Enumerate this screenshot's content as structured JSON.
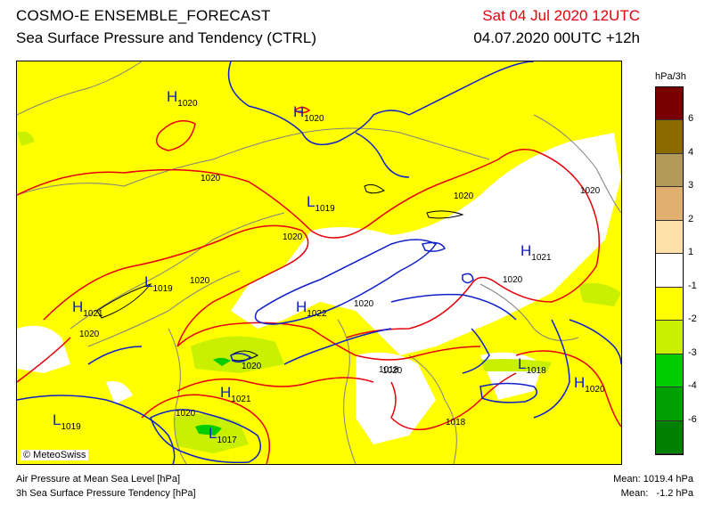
{
  "header": {
    "title": "COSMO-E ENSEMBLE_FORECAST",
    "subtitle": "Sea Surface Pressure and Tendency (CTRL)",
    "valid_time": "Sat 04 Jul 2020 12UTC",
    "run_time": "04.07.2020 00UTC +12h"
  },
  "legend": {
    "unit": "hPa/3h",
    "entries": [
      {
        "label": "6",
        "color": "#7a0000"
      },
      {
        "label": "4",
        "color": "#8c6a00"
      },
      {
        "label": "3",
        "color": "#b49a5a"
      },
      {
        "label": "2",
        "color": "#e0b070"
      },
      {
        "label": "1",
        "color": "#ffe0a8"
      },
      {
        "label": "-1",
        "color": "#ffffff"
      },
      {
        "label": "-2",
        "color": "#ffff00"
      },
      {
        "label": "-3",
        "color": "#c8f000"
      },
      {
        "label": "-4",
        "color": "#00cc00"
      },
      {
        "label": "-6",
        "color": "#00a000"
      },
      {
        "label": "",
        "color": "#008000"
      }
    ]
  },
  "map": {
    "copyright": "© MeteoSwiss",
    "pressure_centers": [
      {
        "type": "H",
        "value": "1020"
      },
      {
        "type": "H",
        "value": "1020"
      },
      {
        "type": "L",
        "value": "1019"
      },
      {
        "type": "H",
        "value": "1021"
      },
      {
        "type": "L",
        "value": "1019"
      },
      {
        "type": "H",
        "value": "1021"
      },
      {
        "type": "H",
        "value": "1022"
      },
      {
        "type": "L",
        "value": "1018"
      },
      {
        "type": "H",
        "value": "1020"
      },
      {
        "type": "H",
        "value": "1021"
      },
      {
        "type": "L",
        "value": "1019"
      },
      {
        "type": "L",
        "value": "1017"
      }
    ],
    "isobar_labels": [
      "1020",
      "1020",
      "1020",
      "1020",
      "1020",
      "1020",
      "1020",
      "1020",
      "1020",
      "1020",
      "1020",
      "1018",
      "1018",
      "1020"
    ]
  },
  "footer": {
    "line1_left": "Air Pressure at Mean Sea Level [hPa]",
    "line2_left": "3h Sea Surface Pressure Tendency [hPa]",
    "line1_right": "Mean: 1019.4 hPa",
    "line2_right": "Mean:   -1.2 hPa"
  }
}
